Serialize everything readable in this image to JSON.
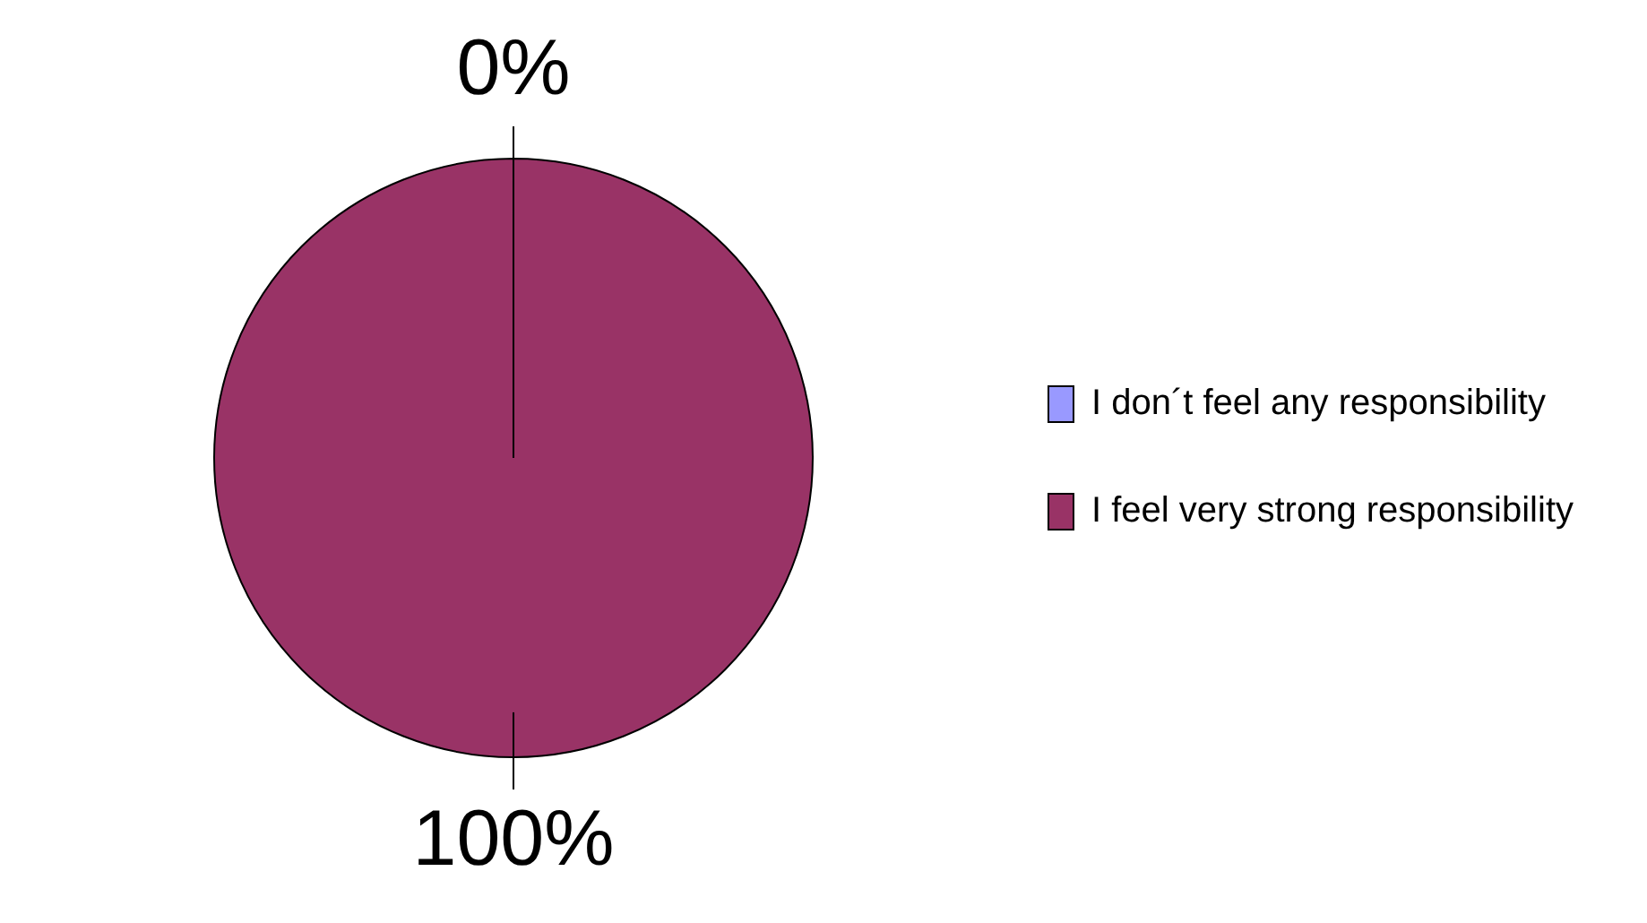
{
  "chart_data": {
    "type": "pie",
    "categories": [
      "I don´t feel any responsibility",
      "I feel very strong responsibility"
    ],
    "values": [
      0,
      100
    ],
    "colors": [
      "#9999ff",
      "#993366"
    ],
    "value_labels": [
      "0%",
      "100%"
    ],
    "legend": "right"
  }
}
